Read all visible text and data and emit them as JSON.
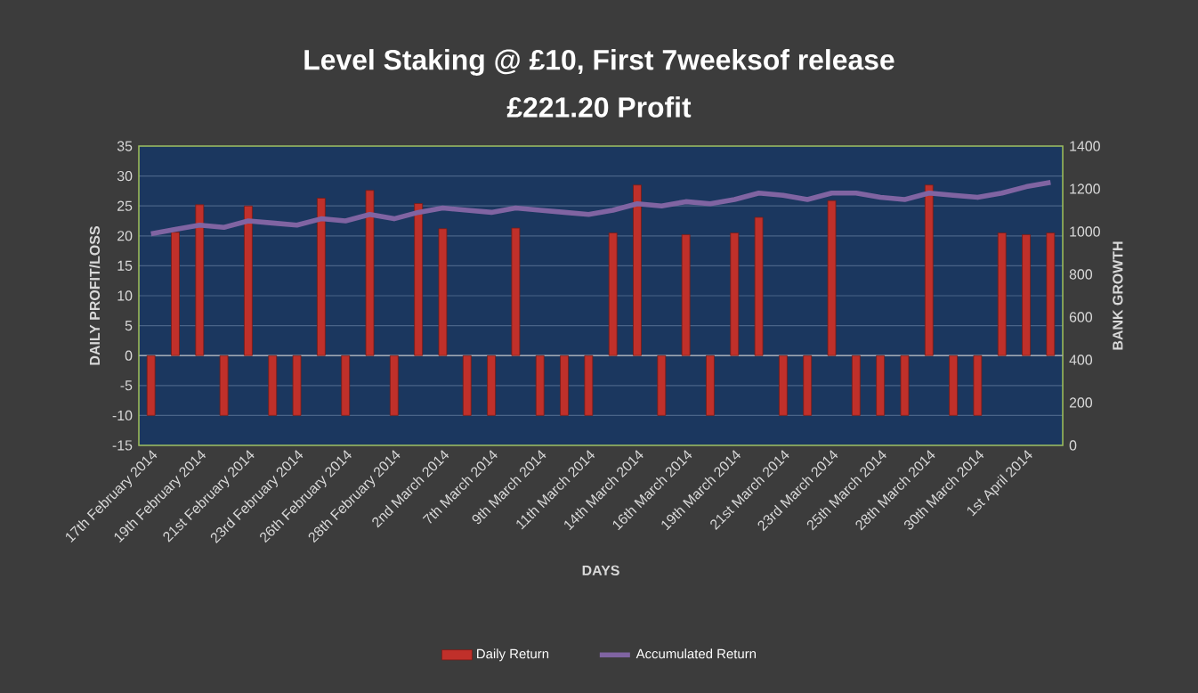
{
  "chart_data": {
    "type": "bar",
    "title": "Level Staking @ £10, First 7weeksof release",
    "subtitle": "£221.20 Profit",
    "xlabel": "DAYS",
    "ylabel": "DAILY PROFIT/LOSS",
    "y2label": "BANK GROWTH",
    "categories": [
      "17th February 2014",
      null,
      "19th February 2014",
      null,
      "21st February 2014",
      null,
      "23rd February 2014",
      null,
      "26th February 2014",
      null,
      "28th February 2014",
      null,
      "2nd March 2014",
      null,
      "7th March 2014",
      null,
      "9th March 2014",
      null,
      "11th March 2014",
      null,
      "14th March 2014",
      null,
      "16th March 2014",
      null,
      "19th March 2014",
      null,
      "21st March 2014",
      null,
      "23rd March 2014",
      null,
      "25th March 2014",
      null,
      "28th March 2014",
      null,
      "30th March 2014",
      null,
      "1st April 2014",
      null
    ],
    "series": [
      {
        "name": "Daily Return",
        "color": "#c0302a",
        "values": [
          -10,
          20.6,
          25.2,
          -10,
          25.0,
          -10,
          -10,
          26.3,
          -10,
          27.6,
          -10,
          25.4,
          21.2,
          -10,
          -10,
          21.3,
          -10,
          -10,
          -10,
          20.5,
          28.5,
          -10,
          20.2,
          -10,
          20.5,
          23.1,
          -10,
          -10,
          25.9,
          -10,
          -10,
          -10,
          28.5,
          -10,
          -10,
          20.5,
          20.2,
          20.5
        ]
      },
      {
        "name": "Accumulated Return",
        "type": "line",
        "axis": "y2",
        "color": "#8064a2",
        "values": [
          990,
          1010,
          1030,
          1020,
          1050,
          1040,
          1030,
          1060,
          1050,
          1080,
          1060,
          1090,
          1110,
          1100,
          1090,
          1110,
          1100,
          1090,
          1080,
          1100,
          1130,
          1120,
          1140,
          1130,
          1150,
          1180,
          1170,
          1150,
          1180,
          1180,
          1160,
          1150,
          1180,
          1170,
          1160,
          1180,
          1210,
          1230
        ]
      }
    ],
    "ylim": [
      -15,
      35
    ],
    "yticks": [
      -15,
      -10,
      -5,
      0,
      5,
      10,
      15,
      20,
      25,
      30,
      35
    ],
    "y2lim": [
      0,
      1400
    ],
    "y2ticks": [
      0,
      200,
      400,
      600,
      800,
      1000,
      1200,
      1400
    ],
    "grid": "y",
    "legend": "bottom",
    "marker": "none"
  }
}
